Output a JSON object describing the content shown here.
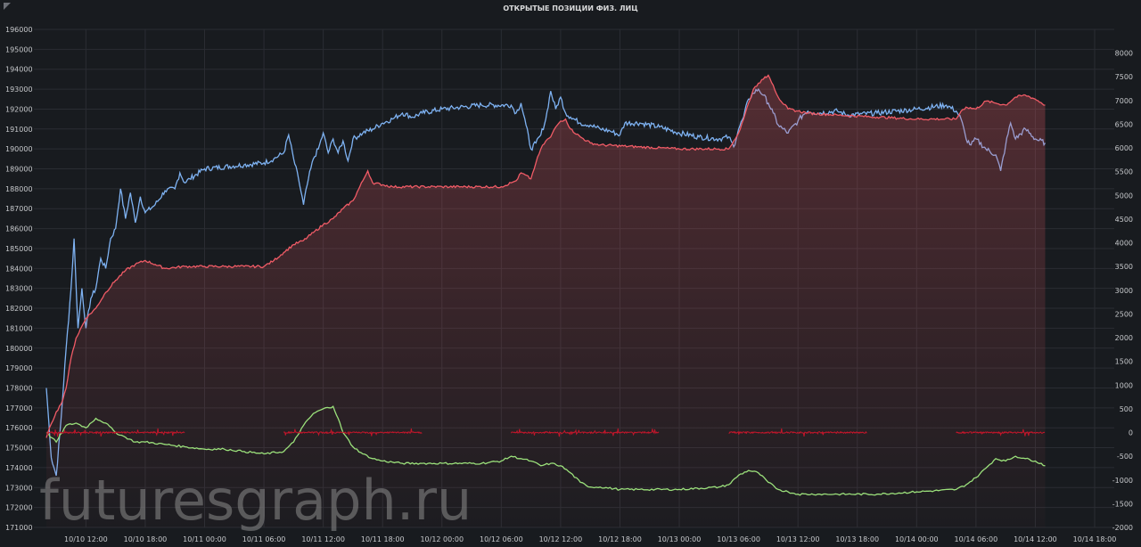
{
  "panel": {
    "title": "ОТКРЫТЫЕ ПОЗИЦИИ ФИЗ. ЛИЦ",
    "corner_icon": "panel-menu-icon",
    "watermark": "futuresgraph.ru"
  },
  "colors": {
    "background": "#181b1f",
    "grid": "#2a2d33",
    "blue": "#7eb2f2",
    "red_line": "#f05b66",
    "red_fill": "#f05b66",
    "green": "#9be07b",
    "dark_red": "#c4162a"
  },
  "chart_data": {
    "type": "line",
    "title": "ОТКРЫТЫЕ ПОЗИЦИИ ФИЗ. ЛИЦ",
    "grid": true,
    "legend": "none",
    "x_unit": "hours since 10/10 08:00",
    "xlim": [
      0,
      106
    ],
    "x_ticks": [
      {
        "x": 4,
        "label": "10/10 12:00"
      },
      {
        "x": 10,
        "label": "10/10 18:00"
      },
      {
        "x": 16,
        "label": "10/11 00:00"
      },
      {
        "x": 22,
        "label": "10/11 06:00"
      },
      {
        "x": 28,
        "label": "10/11 12:00"
      },
      {
        "x": 34,
        "label": "10/11 18:00"
      },
      {
        "x": 40,
        "label": "10/12 00:00"
      },
      {
        "x": 46,
        "label": "10/12 06:00"
      },
      {
        "x": 52,
        "label": "10/12 12:00"
      },
      {
        "x": 58,
        "label": "10/12 18:00"
      },
      {
        "x": 64,
        "label": "10/13 00:00"
      },
      {
        "x": 70,
        "label": "10/13 06:00"
      },
      {
        "x": 76,
        "label": "10/13 12:00"
      },
      {
        "x": 82,
        "label": "10/13 18:00"
      },
      {
        "x": 88,
        "label": "10/14 00:00"
      },
      {
        "x": 94,
        "label": "10/14 06:00"
      },
      {
        "x": 100,
        "label": "10/14 12:00"
      },
      {
        "x": 106,
        "label": "10/14 18:00"
      }
    ],
    "y_left": {
      "lim": [
        171000,
        196000
      ],
      "ticks": [
        "171000",
        "172000",
        "173000",
        "174000",
        "175000",
        "176000",
        "177000",
        "178000",
        "179000",
        "180000",
        "181000",
        "182000",
        "183000",
        "184000",
        "185000",
        "186000",
        "187000",
        "188000",
        "189000",
        "190000",
        "191000",
        "192000",
        "193000",
        "194000",
        "195000",
        "196000"
      ]
    },
    "y_right": {
      "lim": [
        -2000,
        8500
      ],
      "ticks": [
        "-2000",
        "-1500",
        "-1000",
        "-500",
        "0",
        "500",
        "1000",
        "1500",
        "2000",
        "2500",
        "3000",
        "3500",
        "4000",
        "4500",
        "5000",
        "5500",
        "6000",
        "6500",
        "7000",
        "7500",
        "8000"
      ]
    },
    "series": [
      {
        "axis": "left",
        "color": "#7eb2f2",
        "style": "line",
        "points": [
          [
            0,
            178000
          ],
          [
            0.5,
            174500
          ],
          [
            1,
            173600
          ],
          [
            1.5,
            176500
          ],
          [
            2,
            180000
          ],
          [
            2.5,
            183000
          ],
          [
            2.8,
            185500
          ],
          [
            3.2,
            181000
          ],
          [
            3.6,
            183000
          ],
          [
            4,
            181000
          ],
          [
            4.5,
            182500
          ],
          [
            5,
            183000
          ],
          [
            5.5,
            184500
          ],
          [
            6,
            184000
          ],
          [
            6.5,
            185500
          ],
          [
            7,
            186000
          ],
          [
            7.5,
            188000
          ],
          [
            8,
            186500
          ],
          [
            8.5,
            187800
          ],
          [
            9,
            186300
          ],
          [
            9.5,
            187600
          ],
          [
            10,
            186800
          ],
          [
            11,
            187200
          ],
          [
            12,
            187900
          ],
          [
            13,
            188000
          ],
          [
            13.5,
            188800
          ],
          [
            14,
            188300
          ],
          [
            14.5,
            188500
          ],
          [
            16,
            189000
          ],
          [
            20,
            189200
          ],
          [
            22,
            189300
          ],
          [
            23,
            189500
          ],
          [
            24,
            189800
          ],
          [
            24.5,
            190700
          ],
          [
            25,
            189500
          ],
          [
            25.5,
            188500
          ],
          [
            26,
            187200
          ],
          [
            26.5,
            188500
          ],
          [
            27,
            189500
          ],
          [
            27.5,
            190000
          ],
          [
            28,
            190800
          ],
          [
            28.5,
            189800
          ],
          [
            29,
            190500
          ],
          [
            29.5,
            189800
          ],
          [
            30,
            190400
          ],
          [
            30.5,
            189400
          ],
          [
            31,
            190500
          ],
          [
            32,
            190800
          ],
          [
            33,
            191000
          ],
          [
            34,
            191300
          ],
          [
            35,
            191500
          ],
          [
            36,
            191800
          ],
          [
            37,
            191600
          ],
          [
            38,
            191800
          ],
          [
            40,
            192000
          ],
          [
            44,
            192200
          ],
          [
            47,
            192200
          ],
          [
            47.5,
            191800
          ],
          [
            48,
            192300
          ],
          [
            48.5,
            191200
          ],
          [
            49,
            190000
          ],
          [
            49.5,
            190300
          ],
          [
            50,
            190700
          ],
          [
            50.5,
            191500
          ],
          [
            51,
            192900
          ],
          [
            51.5,
            192000
          ],
          [
            52,
            192600
          ],
          [
            52.5,
            191800
          ],
          [
            53,
            191600
          ],
          [
            54,
            191300
          ],
          [
            55,
            191200
          ],
          [
            56,
            191000
          ],
          [
            57,
            190900
          ],
          [
            58,
            190700
          ],
          [
            58.5,
            191300
          ],
          [
            60,
            191300
          ],
          [
            62,
            191100
          ],
          [
            64,
            190800
          ],
          [
            66,
            190600
          ],
          [
            68,
            190500
          ],
          [
            69,
            190600
          ],
          [
            69.5,
            190100
          ],
          [
            70,
            191000
          ],
          [
            70.5,
            191600
          ],
          [
            71,
            192500
          ],
          [
            71.5,
            192800
          ],
          [
            72,
            193000
          ],
          [
            72.5,
            192700
          ],
          [
            73,
            192300
          ],
          [
            73.5,
            191800
          ],
          [
            74,
            191200
          ],
          [
            74.5,
            191000
          ],
          [
            75,
            190800
          ],
          [
            76,
            191400
          ],
          [
            76.5,
            191700
          ],
          [
            77,
            191900
          ],
          [
            78,
            191800
          ],
          [
            80,
            191900
          ],
          [
            81,
            191700
          ],
          [
            84,
            191800
          ],
          [
            88,
            192000
          ],
          [
            91,
            192200
          ],
          [
            92,
            191900
          ],
          [
            92.5,
            191500
          ],
          [
            93,
            190500
          ],
          [
            93.5,
            190200
          ],
          [
            94,
            190500
          ],
          [
            95,
            190000
          ],
          [
            96,
            189700
          ],
          [
            96.5,
            188900
          ],
          [
            97,
            190200
          ],
          [
            97.5,
            191300
          ],
          [
            98,
            190500
          ],
          [
            99,
            191000
          ],
          [
            100,
            190500
          ],
          [
            101,
            190300
          ]
        ]
      },
      {
        "axis": "left",
        "color": "#f05b66",
        "style": "area",
        "points": [
          [
            0,
            175500
          ],
          [
            0.5,
            176200
          ],
          [
            1,
            176800
          ],
          [
            1.5,
            177200
          ],
          [
            2,
            178000
          ],
          [
            2.5,
            179500
          ],
          [
            3,
            180500
          ],
          [
            4,
            181500
          ],
          [
            5,
            182000
          ],
          [
            6,
            182800
          ],
          [
            7,
            183400
          ],
          [
            8,
            183900
          ],
          [
            9,
            184200
          ],
          [
            10,
            184400
          ],
          [
            11,
            184200
          ],
          [
            12,
            184000
          ],
          [
            14,
            184100
          ],
          [
            16,
            184100
          ],
          [
            18,
            184100
          ],
          [
            20,
            184100
          ],
          [
            22,
            184100
          ],
          [
            23,
            184400
          ],
          [
            24,
            184800
          ],
          [
            25,
            185200
          ],
          [
            26,
            185400
          ],
          [
            27,
            185800
          ],
          [
            28,
            186200
          ],
          [
            29,
            186500
          ],
          [
            30,
            187000
          ],
          [
            31,
            187400
          ],
          [
            32,
            188400
          ],
          [
            32.5,
            188900
          ],
          [
            33,
            188300
          ],
          [
            34,
            188200
          ],
          [
            35,
            188100
          ],
          [
            40,
            188100
          ],
          [
            46,
            188100
          ],
          [
            47,
            188300
          ],
          [
            47.5,
            188400
          ],
          [
            48,
            188800
          ],
          [
            49,
            188500
          ],
          [
            49.5,
            189300
          ],
          [
            50,
            190000
          ],
          [
            50.5,
            190400
          ],
          [
            51,
            190600
          ],
          [
            51.5,
            191100
          ],
          [
            52,
            191400
          ],
          [
            52.5,
            191500
          ],
          [
            53,
            191000
          ],
          [
            54,
            190600
          ],
          [
            55,
            190300
          ],
          [
            56,
            190200
          ],
          [
            60,
            190100
          ],
          [
            64,
            190000
          ],
          [
            68,
            190000
          ],
          [
            69,
            190000
          ],
          [
            69.5,
            190400
          ],
          [
            70,
            190800
          ],
          [
            70.5,
            191500
          ],
          [
            71,
            192300
          ],
          [
            71.5,
            193000
          ],
          [
            72,
            193300
          ],
          [
            72.5,
            193500
          ],
          [
            73,
            193700
          ],
          [
            73.5,
            193200
          ],
          [
            74,
            192600
          ],
          [
            75,
            192000
          ],
          [
            76,
            191900
          ],
          [
            77,
            191800
          ],
          [
            80,
            191700
          ],
          [
            84,
            191600
          ],
          [
            88,
            191500
          ],
          [
            92,
            191500
          ],
          [
            92.5,
            191900
          ],
          [
            93,
            192100
          ],
          [
            94,
            192000
          ],
          [
            95,
            192400
          ],
          [
            96,
            192300
          ],
          [
            97,
            192200
          ],
          [
            98,
            192600
          ],
          [
            99,
            192700
          ],
          [
            100,
            192500
          ],
          [
            101,
            192200
          ]
        ]
      },
      {
        "axis": "right",
        "color": "#9be07b",
        "style": "line",
        "points": [
          [
            0,
            0
          ],
          [
            1,
            -200
          ],
          [
            2,
            150
          ],
          [
            3,
            200
          ],
          [
            4,
            100
          ],
          [
            5,
            300
          ],
          [
            6,
            200
          ],
          [
            7,
            0
          ],
          [
            8,
            -100
          ],
          [
            9,
            -200
          ],
          [
            10,
            -200
          ],
          [
            12,
            -250
          ],
          [
            14,
            -300
          ],
          [
            16,
            -350
          ],
          [
            18,
            -350
          ],
          [
            20,
            -400
          ],
          [
            22,
            -450
          ],
          [
            24,
            -400
          ],
          [
            25,
            -200
          ],
          [
            26,
            150
          ],
          [
            27,
            400
          ],
          [
            28,
            500
          ],
          [
            29,
            550
          ],
          [
            29.5,
            300
          ],
          [
            30,
            0
          ],
          [
            31,
            -300
          ],
          [
            32,
            -450
          ],
          [
            33,
            -550
          ],
          [
            34,
            -600
          ],
          [
            36,
            -650
          ],
          [
            38,
            -650
          ],
          [
            40,
            -650
          ],
          [
            44,
            -650
          ],
          [
            46,
            -600
          ],
          [
            47,
            -500
          ],
          [
            48,
            -550
          ],
          [
            49,
            -600
          ],
          [
            50,
            -700
          ],
          [
            51,
            -650
          ],
          [
            52,
            -700
          ],
          [
            53,
            -850
          ],
          [
            54,
            -1050
          ],
          [
            55,
            -1150
          ],
          [
            56,
            -1150
          ],
          [
            58,
            -1200
          ],
          [
            60,
            -1200
          ],
          [
            64,
            -1200
          ],
          [
            68,
            -1150
          ],
          [
            69,
            -1100
          ],
          [
            70,
            -900
          ],
          [
            71,
            -800
          ],
          [
            72,
            -850
          ],
          [
            73,
            -1050
          ],
          [
            74,
            -1200
          ],
          [
            75,
            -1250
          ],
          [
            76,
            -1300
          ],
          [
            78,
            -1300
          ],
          [
            80,
            -1300
          ],
          [
            84,
            -1300
          ],
          [
            88,
            -1250
          ],
          [
            92,
            -1200
          ],
          [
            93,
            -1100
          ],
          [
            94,
            -950
          ],
          [
            95,
            -750
          ],
          [
            96,
            -550
          ],
          [
            97,
            -600
          ],
          [
            98,
            -500
          ],
          [
            99,
            -550
          ],
          [
            100,
            -600
          ],
          [
            101,
            -700
          ]
        ]
      },
      {
        "axis": "right",
        "color": "#c4162a",
        "style": "noise",
        "segments": [
          [
            0,
            14
          ],
          [
            24,
            38
          ],
          [
            47,
            62
          ],
          [
            69,
            83
          ],
          [
            92,
            101
          ]
        ]
      }
    ]
  }
}
